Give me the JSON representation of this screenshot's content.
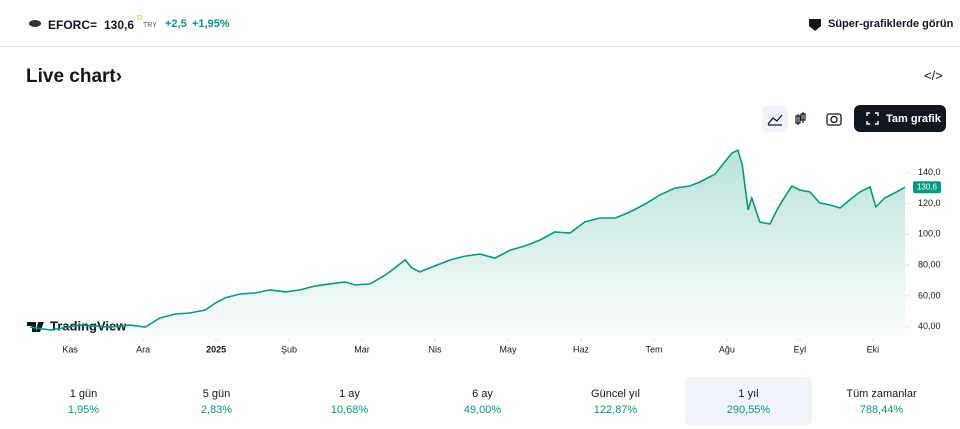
{
  "header": {
    "symbol": "EFORC",
    "equals": "=",
    "price": "130,6",
    "price_marker": "D",
    "currency": "TRY",
    "change": "+2,5",
    "change_pct": "+1,95%",
    "promo": "Süper-grafiklerde görün"
  },
  "title": "Live chart›",
  "full_chart_button": "Tam grafik",
  "watermark": "TradingView",
  "chart_data": {
    "type": "area",
    "x": [
      -0.55,
      -0.27,
      0.14,
      0.55,
      0.82,
      1.03,
      1.23,
      1.44,
      1.64,
      1.85,
      1.99,
      2.12,
      2.33,
      2.53,
      2.74,
      2.95,
      3.15,
      3.36,
      3.56,
      3.77,
      3.9,
      4.11,
      4.32,
      4.45,
      4.59,
      4.68,
      4.79,
      5.0,
      5.21,
      5.41,
      5.62,
      5.82,
      6.03,
      6.23,
      6.44,
      6.64,
      6.85,
      7.05,
      7.26,
      7.47,
      7.67,
      7.88,
      8.08,
      8.29,
      8.49,
      8.63,
      8.84,
      8.97,
      9.07,
      9.15,
      9.21,
      9.29,
      9.34,
      9.45,
      9.59,
      9.7,
      9.81,
      9.89,
      10.0,
      10.14,
      10.27,
      10.41,
      10.55,
      10.68,
      10.82,
      10.96,
      11.04,
      11.16,
      11.3,
      11.44
    ],
    "values": [
      39.8,
      37.9,
      41.1,
      39.8,
      41.1,
      39.8,
      45.7,
      48.3,
      48.9,
      50.9,
      55.4,
      58.7,
      61.3,
      61.9,
      63.9,
      62.6,
      63.9,
      66.5,
      67.8,
      69.1,
      67.1,
      67.8,
      73.6,
      78.2,
      83.4,
      78.2,
      75.6,
      79.5,
      83.4,
      85.9,
      87.2,
      84.6,
      89.8,
      92.4,
      96.3,
      101.5,
      100.9,
      108.0,
      110.6,
      110.6,
      114.5,
      119.7,
      125.6,
      130.1,
      131.4,
      134.0,
      139.2,
      147.0,
      152.8,
      154.7,
      145.0,
      115.8,
      123.6,
      108.0,
      106.7,
      117.1,
      125.6,
      131.4,
      128.8,
      127.5,
      120.4,
      119.1,
      117.1,
      122.3,
      127.5,
      130.8,
      117.8,
      123.6,
      126.9,
      130.6
    ],
    "last_label": "130,6",
    "color": "#089981",
    "xlim": [
      -0.55,
      11.44
    ],
    "xticks": [
      {
        "value": 0,
        "label": "Kas"
      },
      {
        "value": 1,
        "label": "Ara"
      },
      {
        "value": 2,
        "label": "2025"
      },
      {
        "value": 3,
        "label": "Şub"
      },
      {
        "value": 4,
        "label": "Mar"
      },
      {
        "value": 5,
        "label": "Nis"
      },
      {
        "value": 6,
        "label": "May"
      },
      {
        "value": 7,
        "label": "Haz"
      },
      {
        "value": 8,
        "label": "Tem"
      },
      {
        "value": 9,
        "label": "Ağu"
      },
      {
        "value": 10,
        "label": "Eyl"
      },
      {
        "value": 11,
        "label": "Eki"
      }
    ],
    "ylim": [
      34,
      158
    ],
    "yticks": [
      {
        "value": 40,
        "label": "40,00"
      },
      {
        "value": 60,
        "label": "60,00"
      },
      {
        "value": 80,
        "label": "80,00"
      },
      {
        "value": 100,
        "label": "100,0"
      },
      {
        "value": 120,
        "label": "120,0"
      },
      {
        "value": 140,
        "label": "140,0"
      }
    ],
    "grid": false
  },
  "periods": [
    {
      "label": "1 gün",
      "change": "1,95%"
    },
    {
      "label": "5 gün",
      "change": "2,83%"
    },
    {
      "label": "1 ay",
      "change": "10,68%"
    },
    {
      "label": "6 ay",
      "change": "49,00%"
    },
    {
      "label": "Güncel yıl",
      "change": "122,87%"
    },
    {
      "label": "1 yıl",
      "change": "290,55%"
    },
    {
      "label": "Tüm zamanlar",
      "change": "788,44%"
    }
  ],
  "selected_period": 5
}
